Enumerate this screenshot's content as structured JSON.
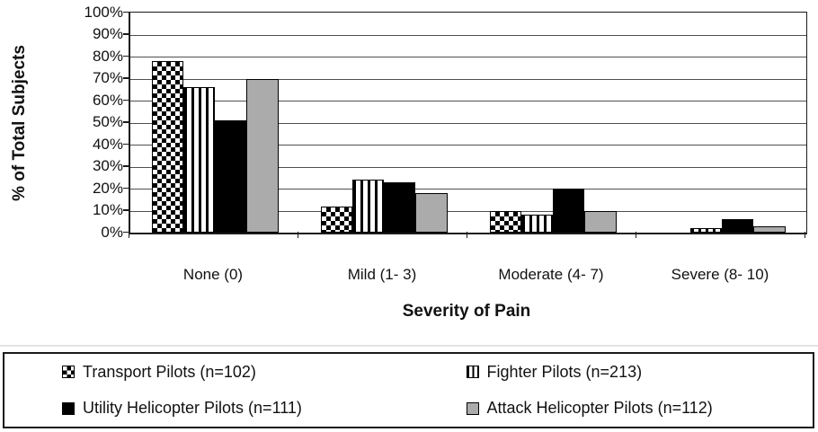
{
  "chart_data": {
    "type": "bar",
    "title": "",
    "xlabel": "Severity of Pain",
    "ylabel": "% of Total Subjects",
    "categories": [
      "None (0)",
      "Mild (1- 3)",
      "Moderate (4- 7)",
      "Severe (8- 10)"
    ],
    "ylim": [
      0,
      100
    ],
    "y_tick_step": 10,
    "y_tick_labels": [
      "0%",
      "10%",
      "20%",
      "30%",
      "40%",
      "50%",
      "60%",
      "70%",
      "80%",
      "90%",
      "100%"
    ],
    "grid": "horizontal",
    "legend_position": "bottom-box",
    "series": [
      {
        "name": "Transport Pilots (n=102)",
        "pattern": "checker",
        "values": [
          78,
          12,
          10,
          0
        ]
      },
      {
        "name": "Fighter Pilots (n=213)",
        "pattern": "vstripe",
        "values": [
          66,
          24,
          8,
          2
        ]
      },
      {
        "name": "Utility Helicopter Pilots (n=111)",
        "pattern": "solid",
        "color": "#000000",
        "values": [
          51,
          23,
          20,
          6
        ]
      },
      {
        "name": "Attack Helicopter Pilots (n=112)",
        "pattern": "gray",
        "color": "#ababab",
        "values": [
          70,
          18,
          10,
          3
        ]
      }
    ],
    "colors": {
      "bar_border": "#000000",
      "gridline": "#4f4f4f",
      "axis": "#1a1a1a",
      "gray_fill": "#ababab",
      "background": "#ffffff"
    },
    "legend_order_grid": [
      [
        "Transport Pilots (n=102)",
        "Fighter Pilots (n=213)"
      ],
      [
        "Utility Helicopter Pilots (n=111)",
        "Attack Helicopter Pilots (n=112)"
      ]
    ]
  }
}
